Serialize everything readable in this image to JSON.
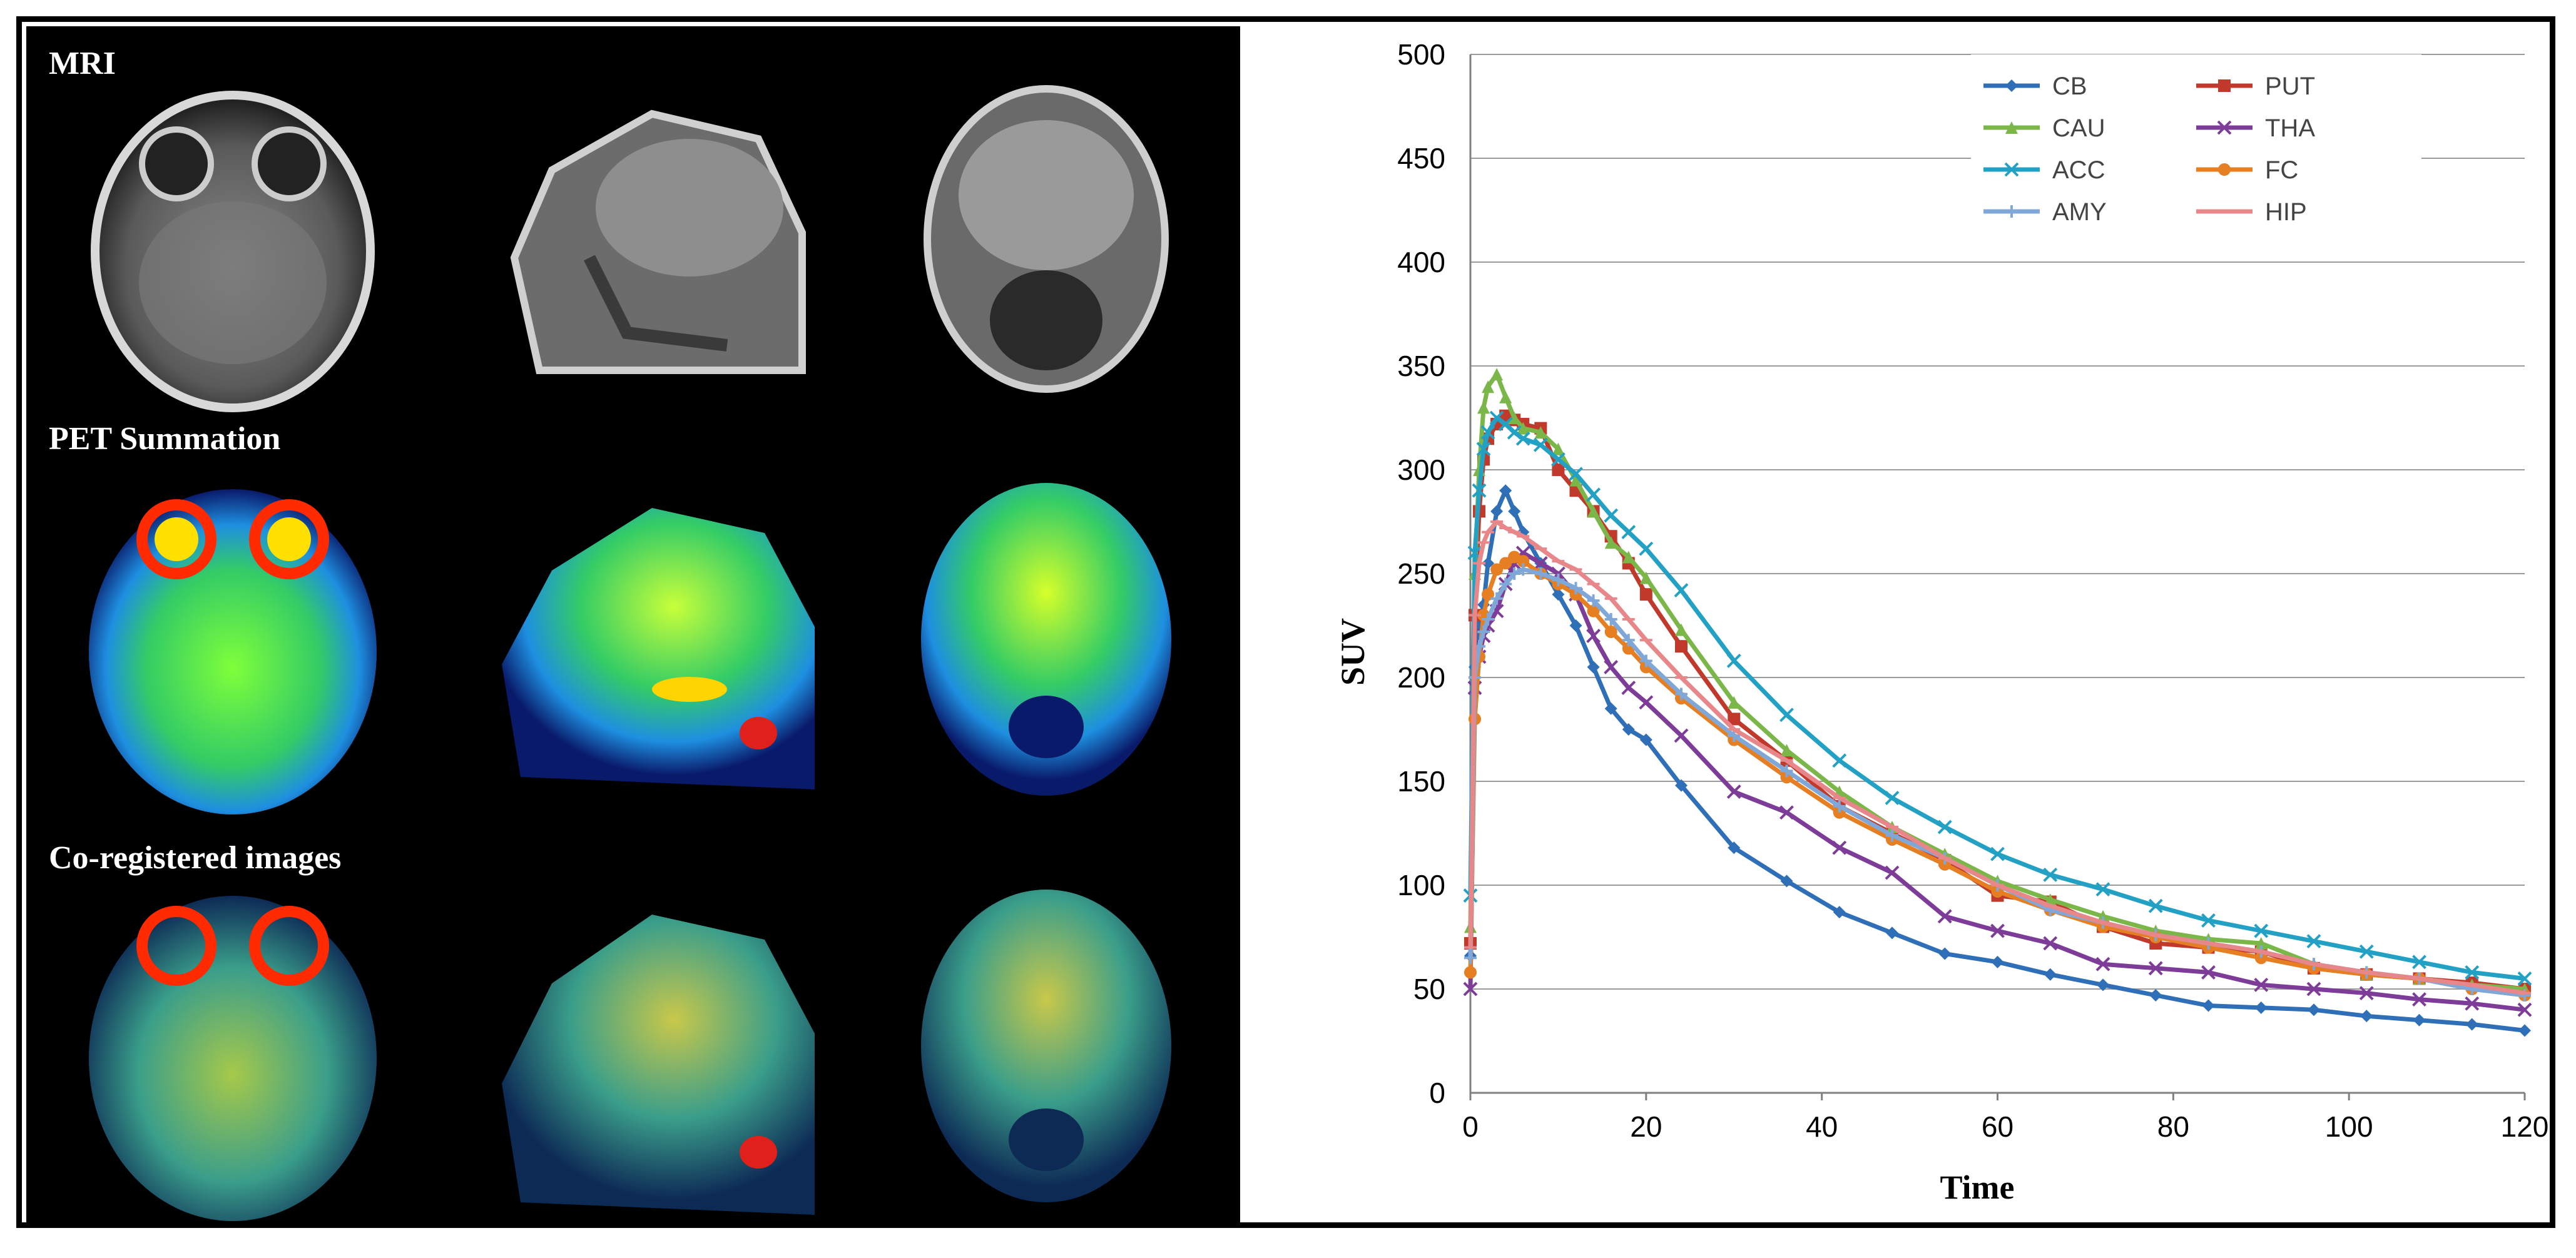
{
  "image_panel": {
    "rows": [
      {
        "label": "MRI"
      },
      {
        "label": "PET Summation"
      },
      {
        "label": "Co-registered images"
      }
    ]
  },
  "chart_data": {
    "type": "line",
    "xlabel": "Time",
    "ylabel": "SUV",
    "xlim": [
      0,
      120
    ],
    "ylim": [
      0,
      500
    ],
    "xticks": [
      0,
      20,
      40,
      60,
      80,
      100,
      120
    ],
    "yticks": [
      0,
      50,
      100,
      150,
      200,
      250,
      300,
      350,
      400,
      450,
      500
    ],
    "grid": "horizontal",
    "legend_position": "top-right",
    "series": [
      {
        "name": "CB",
        "color": "#2e6fb7",
        "marker": "diamond",
        "x": [
          0,
          0.5,
          1,
          1.5,
          2,
          3,
          4,
          5,
          6,
          8,
          10,
          12,
          14,
          16,
          18,
          20,
          24,
          30,
          36,
          42,
          48,
          54,
          60,
          66,
          72,
          78,
          84,
          90,
          96,
          102,
          108,
          114,
          120
        ],
        "y": [
          66,
          205,
          225,
          235,
          255,
          280,
          290,
          280,
          270,
          255,
          240,
          225,
          205,
          185,
          175,
          170,
          148,
          118,
          102,
          87,
          77,
          67,
          63,
          57,
          52,
          47,
          42,
          41,
          40,
          37,
          35,
          33,
          30
        ]
      },
      {
        "name": "PUT",
        "color": "#c0392b",
        "marker": "square",
        "x": [
          0,
          0.5,
          1,
          1.5,
          2,
          3,
          4,
          5,
          6,
          8,
          10,
          12,
          14,
          16,
          18,
          20,
          24,
          30,
          36,
          42,
          48,
          54,
          60,
          66,
          72,
          78,
          84,
          90,
          96,
          102,
          108,
          114,
          120
        ],
        "y": [
          72,
          230,
          280,
          305,
          315,
          322,
          326,
          324,
          322,
          320,
          300,
          290,
          280,
          268,
          255,
          240,
          215,
          180,
          160,
          138,
          125,
          112,
          95,
          92,
          80,
          72,
          70,
          68,
          60,
          57,
          55,
          53,
          50
        ]
      },
      {
        "name": "CAU",
        "color": "#7ab648",
        "marker": "triangle",
        "x": [
          0,
          0.5,
          1,
          1.5,
          2,
          3,
          4,
          5,
          6,
          8,
          10,
          12,
          14,
          16,
          18,
          20,
          24,
          30,
          36,
          42,
          48,
          54,
          60,
          66,
          72,
          78,
          84,
          90,
          96,
          102,
          108,
          114,
          120
        ],
        "y": [
          80,
          250,
          300,
          330,
          340,
          346,
          335,
          325,
          320,
          318,
          310,
          295,
          280,
          265,
          258,
          248,
          223,
          188,
          165,
          145,
          128,
          115,
          102,
          93,
          85,
          78,
          74,
          72,
          62,
          57,
          55,
          52,
          50
        ]
      },
      {
        "name": "THA",
        "color": "#7d3c98",
        "marker": "x",
        "x": [
          0,
          0.5,
          1,
          1.5,
          2,
          3,
          4,
          5,
          6,
          8,
          10,
          12,
          14,
          16,
          18,
          20,
          24,
          30,
          36,
          42,
          48,
          54,
          60,
          66,
          72,
          78,
          84,
          90,
          96,
          102,
          108,
          114,
          120
        ],
        "y": [
          50,
          195,
          210,
          220,
          225,
          232,
          245,
          255,
          260,
          255,
          250,
          240,
          220,
          205,
          195,
          188,
          172,
          145,
          135,
          118,
          106,
          85,
          78,
          72,
          62,
          60,
          58,
          52,
          50,
          48,
          45,
          43,
          40
        ]
      },
      {
        "name": "ACC",
        "color": "#22a1c4",
        "marker": "x",
        "x": [
          0,
          0.5,
          1,
          1.5,
          2,
          3,
          4,
          5,
          6,
          8,
          10,
          12,
          14,
          16,
          18,
          20,
          24,
          30,
          36,
          42,
          48,
          54,
          60,
          66,
          72,
          78,
          84,
          90,
          96,
          102,
          108,
          114,
          120
        ],
        "y": [
          95,
          260,
          290,
          310,
          318,
          325,
          322,
          318,
          315,
          312,
          305,
          298,
          288,
          278,
          270,
          262,
          242,
          208,
          182,
          160,
          142,
          128,
          115,
          105,
          98,
          90,
          83,
          78,
          73,
          68,
          63,
          58,
          55
        ]
      },
      {
        "name": "FC",
        "color": "#e67e22",
        "marker": "circle",
        "x": [
          0,
          0.5,
          1,
          1.5,
          2,
          3,
          4,
          5,
          6,
          8,
          10,
          12,
          14,
          16,
          18,
          20,
          24,
          30,
          36,
          42,
          48,
          54,
          60,
          66,
          72,
          78,
          84,
          90,
          96,
          102,
          108,
          114,
          120
        ],
        "y": [
          58,
          180,
          210,
          230,
          240,
          252,
          255,
          258,
          256,
          250,
          245,
          240,
          232,
          222,
          214,
          205,
          190,
          170,
          152,
          135,
          122,
          110,
          97,
          88,
          80,
          75,
          70,
          65,
          60,
          57,
          55,
          50,
          47
        ]
      },
      {
        "name": "AMY",
        "color": "#7fa7d8",
        "marker": "plus",
        "x": [
          0,
          0.5,
          1,
          1.5,
          2,
          3,
          4,
          5,
          6,
          8,
          10,
          12,
          14,
          16,
          18,
          20,
          24,
          30,
          36,
          42,
          48,
          54,
          60,
          66,
          72,
          78,
          84,
          90,
          96,
          102,
          108,
          114,
          120
        ],
        "y": [
          65,
          200,
          215,
          222,
          228,
          238,
          245,
          250,
          252,
          250,
          247,
          243,
          237,
          228,
          218,
          208,
          192,
          172,
          155,
          138,
          124,
          113,
          100,
          88,
          82,
          76,
          72,
          68,
          62,
          58,
          55,
          50,
          47
        ]
      },
      {
        "name": "HIP",
        "color": "#e8878a",
        "marker": "line",
        "x": [
          0,
          0.5,
          1,
          1.5,
          2,
          3,
          4,
          5,
          6,
          8,
          10,
          12,
          14,
          16,
          18,
          20,
          24,
          30,
          36,
          42,
          48,
          54,
          60,
          66,
          72,
          78,
          84,
          90,
          96,
          102,
          108,
          114,
          120
        ],
        "y": [
          70,
          230,
          255,
          265,
          270,
          275,
          272,
          270,
          268,
          262,
          256,
          252,
          245,
          238,
          228,
          218,
          200,
          175,
          160,
          142,
          128,
          113,
          100,
          90,
          82,
          76,
          72,
          68,
          62,
          58,
          55,
          52,
          48
        ]
      }
    ]
  }
}
